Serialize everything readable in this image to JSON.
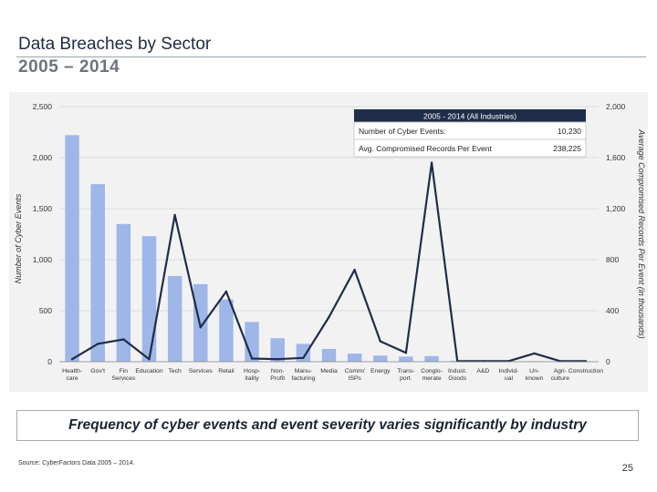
{
  "slide": {
    "title": "Data Breaches by Sector",
    "subtitle": "2005 – 2014",
    "banner": "Frequency of cyber events and event severity varies significantly by industry",
    "source": "Source: CyberFactors Data 2005 – 2014.",
    "page_number": "25"
  },
  "summary_box": {
    "header": "2005 - 2014 (All Industries)",
    "rows": [
      {
        "label": "Number of Cyber Events:",
        "value": "10,230"
      },
      {
        "label": "Avg. Compromised Records Per Event",
        "value": "238,225"
      }
    ]
  },
  "chart_data": {
    "type": "bar+line",
    "title": "",
    "ylabel_left": "Number of Cyber Events",
    "ylabel_right": "Average Compromised Records Per Event (in thousands)",
    "ylim_left": [
      0,
      2500
    ],
    "ylim_right": [
      0,
      2000
    ],
    "left_ticks": [
      "0",
      "500",
      "1,000",
      "1,500",
      "2,000",
      "2,500"
    ],
    "right_ticks": [
      "0",
      "400",
      "800",
      "1,200",
      "1,600",
      "2,000"
    ],
    "grid": true,
    "categories": [
      [
        "Health-",
        "care"
      ],
      [
        "Gov't"
      ],
      [
        "Fin",
        "Services"
      ],
      [
        "Education"
      ],
      [
        "Tech"
      ],
      [
        "Services"
      ],
      [
        "Retail"
      ],
      [
        "Hosp-",
        "itality"
      ],
      [
        "Non-",
        "Profit"
      ],
      [
        "Manu-",
        "facturing"
      ],
      [
        "Media"
      ],
      [
        "Comm/",
        "ISPs"
      ],
      [
        "Energy"
      ],
      [
        "Trans-",
        "port."
      ],
      [
        "Conglo-",
        "merate"
      ],
      [
        "Indust.",
        "Goods"
      ],
      [
        "A&D"
      ],
      [
        "Individ-",
        "ual"
      ],
      [
        "Un-",
        "known"
      ],
      [
        "Agri-",
        "culture"
      ],
      [
        "Construction"
      ]
    ],
    "series": [
      {
        "name": "Number of Cyber Events",
        "axis": "left",
        "style": "bar",
        "color": "#9fb6e8",
        "values": [
          2220,
          1740,
          1350,
          1230,
          840,
          760,
          610,
          390,
          230,
          175,
          125,
          80,
          60,
          50,
          55,
          8,
          5,
          5,
          5,
          3,
          3
        ]
      },
      {
        "name": "Average Compromised Records Per Event",
        "axis": "right",
        "style": "line",
        "color": "#1f2d4a",
        "values": [
          20,
          140,
          175,
          20,
          1150,
          270,
          550,
          25,
          20,
          30,
          350,
          720,
          160,
          70,
          1560,
          5,
          5,
          5,
          65,
          5,
          5
        ]
      }
    ]
  }
}
